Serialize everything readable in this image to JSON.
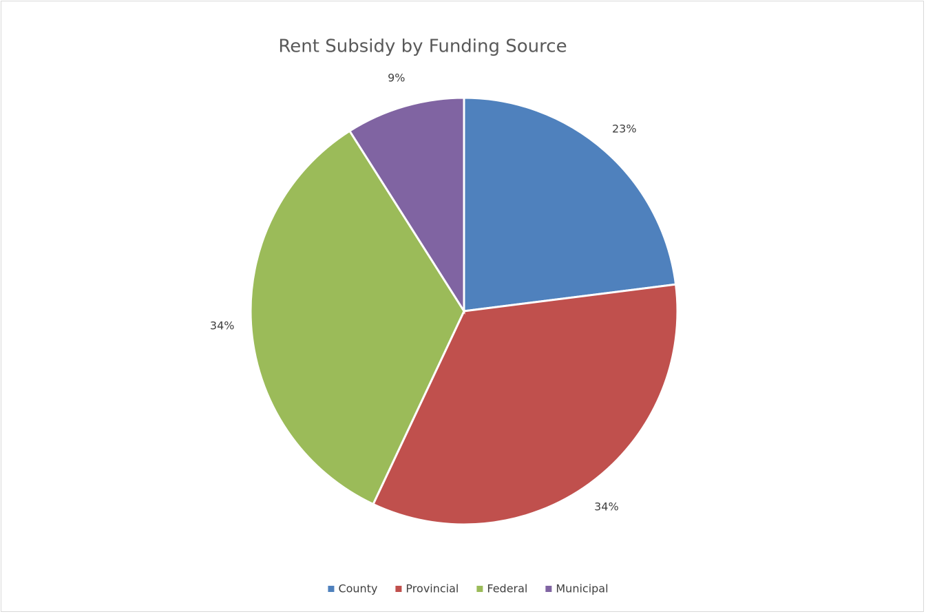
{
  "chart_data": {
    "type": "pie",
    "title": "Rent Subsidy by Funding Source",
    "categories": [
      "County",
      "Provincial",
      "Federal",
      "Municipal"
    ],
    "values": [
      23,
      34,
      34,
      9
    ],
    "value_labels": [
      "23%",
      "34%",
      "34%",
      "9%"
    ],
    "colors": [
      "#4f81bd",
      "#c0504d",
      "#9bbb59",
      "#8064a2"
    ],
    "legend": "bottom"
  }
}
